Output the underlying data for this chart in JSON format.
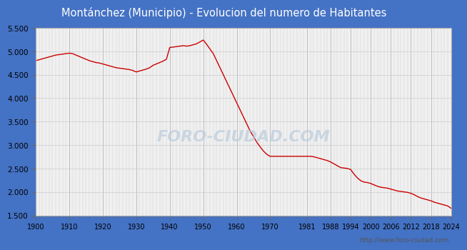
{
  "title": "Montánchez (Municipio) - Evolucion del numero de Habitantes",
  "title_color": "white",
  "title_bg_color": "#4472C4",
  "plot_bg_color": "#F0F0F0",
  "line_color": "#CC0000",
  "watermark_text": "FORO-CIUDAD.COM",
  "watermark_color": "#BBCCDD",
  "url_text": "http://www.foro-ciudad.com",
  "url_color": "#555555",
  "ylim": [
    1500,
    5500
  ],
  "yticks": [
    1500,
    2000,
    2500,
    3000,
    3500,
    4000,
    4500,
    5000,
    5500
  ],
  "xticks": [
    1900,
    1910,
    1920,
    1930,
    1940,
    1950,
    1960,
    1970,
    1981,
    1988,
    1994,
    2000,
    2006,
    2012,
    2018,
    2024
  ],
  "years": [
    1900,
    1901,
    1902,
    1903,
    1904,
    1905,
    1906,
    1907,
    1908,
    1909,
    1910,
    1911,
    1912,
    1913,
    1914,
    1915,
    1916,
    1917,
    1918,
    1919,
    1920,
    1921,
    1922,
    1923,
    1924,
    1925,
    1926,
    1927,
    1928,
    1929,
    1930,
    1931,
    1932,
    1933,
    1934,
    1935,
    1936,
    1937,
    1938,
    1939,
    1940,
    1941,
    1942,
    1943,
    1944,
    1945,
    1946,
    1947,
    1948,
    1949,
    1950,
    1951,
    1952,
    1953,
    1954,
    1955,
    1956,
    1957,
    1958,
    1959,
    1960,
    1961,
    1962,
    1963,
    1964,
    1965,
    1966,
    1967,
    1968,
    1969,
    1970,
    1971,
    1972,
    1973,
    1974,
    1975,
    1976,
    1977,
    1978,
    1979,
    1981,
    1982,
    1983,
    1984,
    1985,
    1986,
    1987,
    1988,
    1989,
    1990,
    1991,
    1992,
    1993,
    1994,
    1995,
    1996,
    1997,
    1998,
    1999,
    2000,
    2001,
    2002,
    2003,
    2004,
    2005,
    2006,
    2007,
    2008,
    2009,
    2010,
    2011,
    2012,
    2013,
    2014,
    2015,
    2016,
    2017,
    2018,
    2019,
    2020,
    2021,
    2022,
    2023,
    2024
  ],
  "population": [
    4800,
    4820,
    4840,
    4860,
    4880,
    4900,
    4920,
    4930,
    4940,
    4950,
    4960,
    4950,
    4920,
    4890,
    4860,
    4830,
    4800,
    4780,
    4760,
    4750,
    4730,
    4710,
    4690,
    4670,
    4650,
    4640,
    4630,
    4620,
    4610,
    4590,
    4560,
    4580,
    4600,
    4620,
    4650,
    4700,
    4730,
    4760,
    4790,
    4830,
    5080,
    5090,
    5100,
    5110,
    5120,
    5110,
    5120,
    5140,
    5160,
    5200,
    5240,
    5150,
    5050,
    4950,
    4800,
    4650,
    4500,
    4350,
    4200,
    4050,
    3900,
    3750,
    3600,
    3450,
    3300,
    3180,
    3060,
    2960,
    2870,
    2800,
    2760,
    2760,
    2760,
    2760,
    2760,
    2760,
    2760,
    2760,
    2760,
    2760,
    2760,
    2760,
    2750,
    2730,
    2710,
    2690,
    2670,
    2640,
    2600,
    2560,
    2520,
    2510,
    2500,
    2480,
    2380,
    2300,
    2240,
    2210,
    2200,
    2180,
    2150,
    2120,
    2100,
    2090,
    2080,
    2060,
    2040,
    2020,
    2010,
    2000,
    1990,
    1970,
    1940,
    1900,
    1870,
    1850,
    1830,
    1810,
    1780,
    1760,
    1740,
    1720,
    1700,
    1650
  ]
}
